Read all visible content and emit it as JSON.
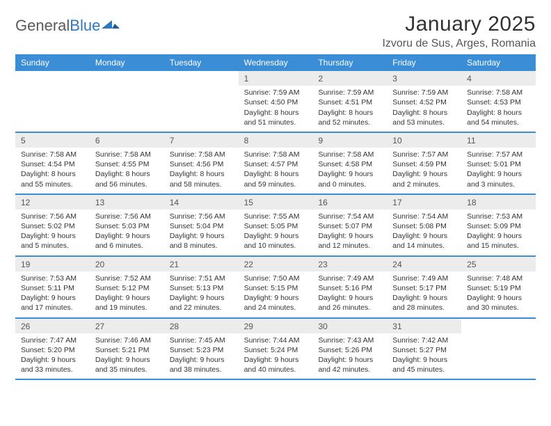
{
  "logo": {
    "brand_a": "General",
    "brand_b": "Blue"
  },
  "title": "January 2025",
  "location": "Izvoru de Sus, Arges, Romania",
  "colors": {
    "header_bg": "#3b8dd6",
    "header_text": "#ffffff",
    "daynum_bg": "#ececec",
    "border": "#3b8dd6",
    "logo_grey": "#5a5a5a",
    "logo_blue": "#2e78c2",
    "page_bg": "#ffffff",
    "body_text": "#333333"
  },
  "daysOfWeek": [
    "Sunday",
    "Monday",
    "Tuesday",
    "Wednesday",
    "Thursday",
    "Friday",
    "Saturday"
  ],
  "weeks": [
    [
      {
        "empty": true
      },
      {
        "empty": true
      },
      {
        "empty": true
      },
      {
        "n": "1",
        "sr": "7:59 AM",
        "ss": "4:50 PM",
        "dl": "8 hours and 51 minutes."
      },
      {
        "n": "2",
        "sr": "7:59 AM",
        "ss": "4:51 PM",
        "dl": "8 hours and 52 minutes."
      },
      {
        "n": "3",
        "sr": "7:59 AM",
        "ss": "4:52 PM",
        "dl": "8 hours and 53 minutes."
      },
      {
        "n": "4",
        "sr": "7:58 AM",
        "ss": "4:53 PM",
        "dl": "8 hours and 54 minutes."
      }
    ],
    [
      {
        "n": "5",
        "sr": "7:58 AM",
        "ss": "4:54 PM",
        "dl": "8 hours and 55 minutes."
      },
      {
        "n": "6",
        "sr": "7:58 AM",
        "ss": "4:55 PM",
        "dl": "8 hours and 56 minutes."
      },
      {
        "n": "7",
        "sr": "7:58 AM",
        "ss": "4:56 PM",
        "dl": "8 hours and 58 minutes."
      },
      {
        "n": "8",
        "sr": "7:58 AM",
        "ss": "4:57 PM",
        "dl": "8 hours and 59 minutes."
      },
      {
        "n": "9",
        "sr": "7:58 AM",
        "ss": "4:58 PM",
        "dl": "9 hours and 0 minutes."
      },
      {
        "n": "10",
        "sr": "7:57 AM",
        "ss": "4:59 PM",
        "dl": "9 hours and 2 minutes."
      },
      {
        "n": "11",
        "sr": "7:57 AM",
        "ss": "5:01 PM",
        "dl": "9 hours and 3 minutes."
      }
    ],
    [
      {
        "n": "12",
        "sr": "7:56 AM",
        "ss": "5:02 PM",
        "dl": "9 hours and 5 minutes."
      },
      {
        "n": "13",
        "sr": "7:56 AM",
        "ss": "5:03 PM",
        "dl": "9 hours and 6 minutes."
      },
      {
        "n": "14",
        "sr": "7:56 AM",
        "ss": "5:04 PM",
        "dl": "9 hours and 8 minutes."
      },
      {
        "n": "15",
        "sr": "7:55 AM",
        "ss": "5:05 PM",
        "dl": "9 hours and 10 minutes."
      },
      {
        "n": "16",
        "sr": "7:54 AM",
        "ss": "5:07 PM",
        "dl": "9 hours and 12 minutes."
      },
      {
        "n": "17",
        "sr": "7:54 AM",
        "ss": "5:08 PM",
        "dl": "9 hours and 14 minutes."
      },
      {
        "n": "18",
        "sr": "7:53 AM",
        "ss": "5:09 PM",
        "dl": "9 hours and 15 minutes."
      }
    ],
    [
      {
        "n": "19",
        "sr": "7:53 AM",
        "ss": "5:11 PM",
        "dl": "9 hours and 17 minutes."
      },
      {
        "n": "20",
        "sr": "7:52 AM",
        "ss": "5:12 PM",
        "dl": "9 hours and 19 minutes."
      },
      {
        "n": "21",
        "sr": "7:51 AM",
        "ss": "5:13 PM",
        "dl": "9 hours and 22 minutes."
      },
      {
        "n": "22",
        "sr": "7:50 AM",
        "ss": "5:15 PM",
        "dl": "9 hours and 24 minutes."
      },
      {
        "n": "23",
        "sr": "7:49 AM",
        "ss": "5:16 PM",
        "dl": "9 hours and 26 minutes."
      },
      {
        "n": "24",
        "sr": "7:49 AM",
        "ss": "5:17 PM",
        "dl": "9 hours and 28 minutes."
      },
      {
        "n": "25",
        "sr": "7:48 AM",
        "ss": "5:19 PM",
        "dl": "9 hours and 30 minutes."
      }
    ],
    [
      {
        "n": "26",
        "sr": "7:47 AM",
        "ss": "5:20 PM",
        "dl": "9 hours and 33 minutes."
      },
      {
        "n": "27",
        "sr": "7:46 AM",
        "ss": "5:21 PM",
        "dl": "9 hours and 35 minutes."
      },
      {
        "n": "28",
        "sr": "7:45 AM",
        "ss": "5:23 PM",
        "dl": "9 hours and 38 minutes."
      },
      {
        "n": "29",
        "sr": "7:44 AM",
        "ss": "5:24 PM",
        "dl": "9 hours and 40 minutes."
      },
      {
        "n": "30",
        "sr": "7:43 AM",
        "ss": "5:26 PM",
        "dl": "9 hours and 42 minutes."
      },
      {
        "n": "31",
        "sr": "7:42 AM",
        "ss": "5:27 PM",
        "dl": "9 hours and 45 minutes."
      },
      {
        "empty": true
      }
    ]
  ],
  "labels": {
    "sunrise": "Sunrise:",
    "sunset": "Sunset:",
    "daylight": "Daylight:"
  }
}
